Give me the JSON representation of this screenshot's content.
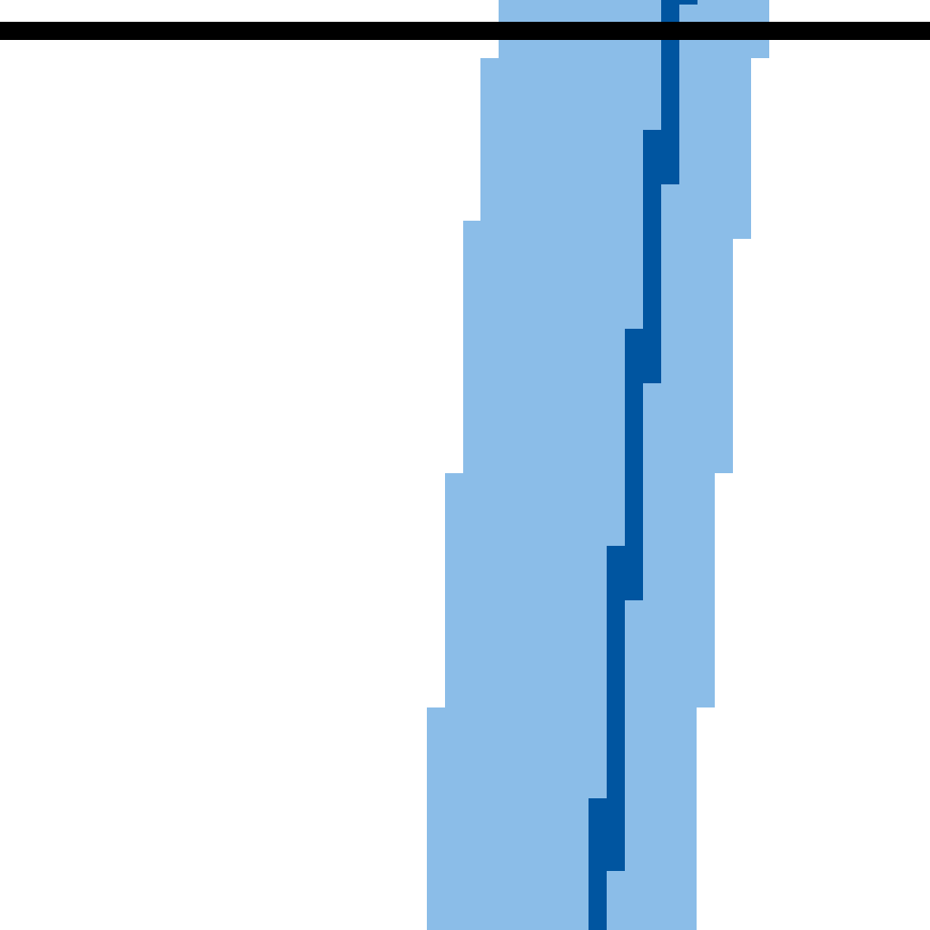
{
  "colors": {
    "background": "#ffffff",
    "band_fill": "#8bbde8",
    "centerline_stroke": "#0055a0",
    "baseline_stroke": "#000000"
  },
  "elements": {
    "band": "uncertainty-band",
    "centerline": "center-line",
    "baseline": "horizontal-baseline"
  }
}
